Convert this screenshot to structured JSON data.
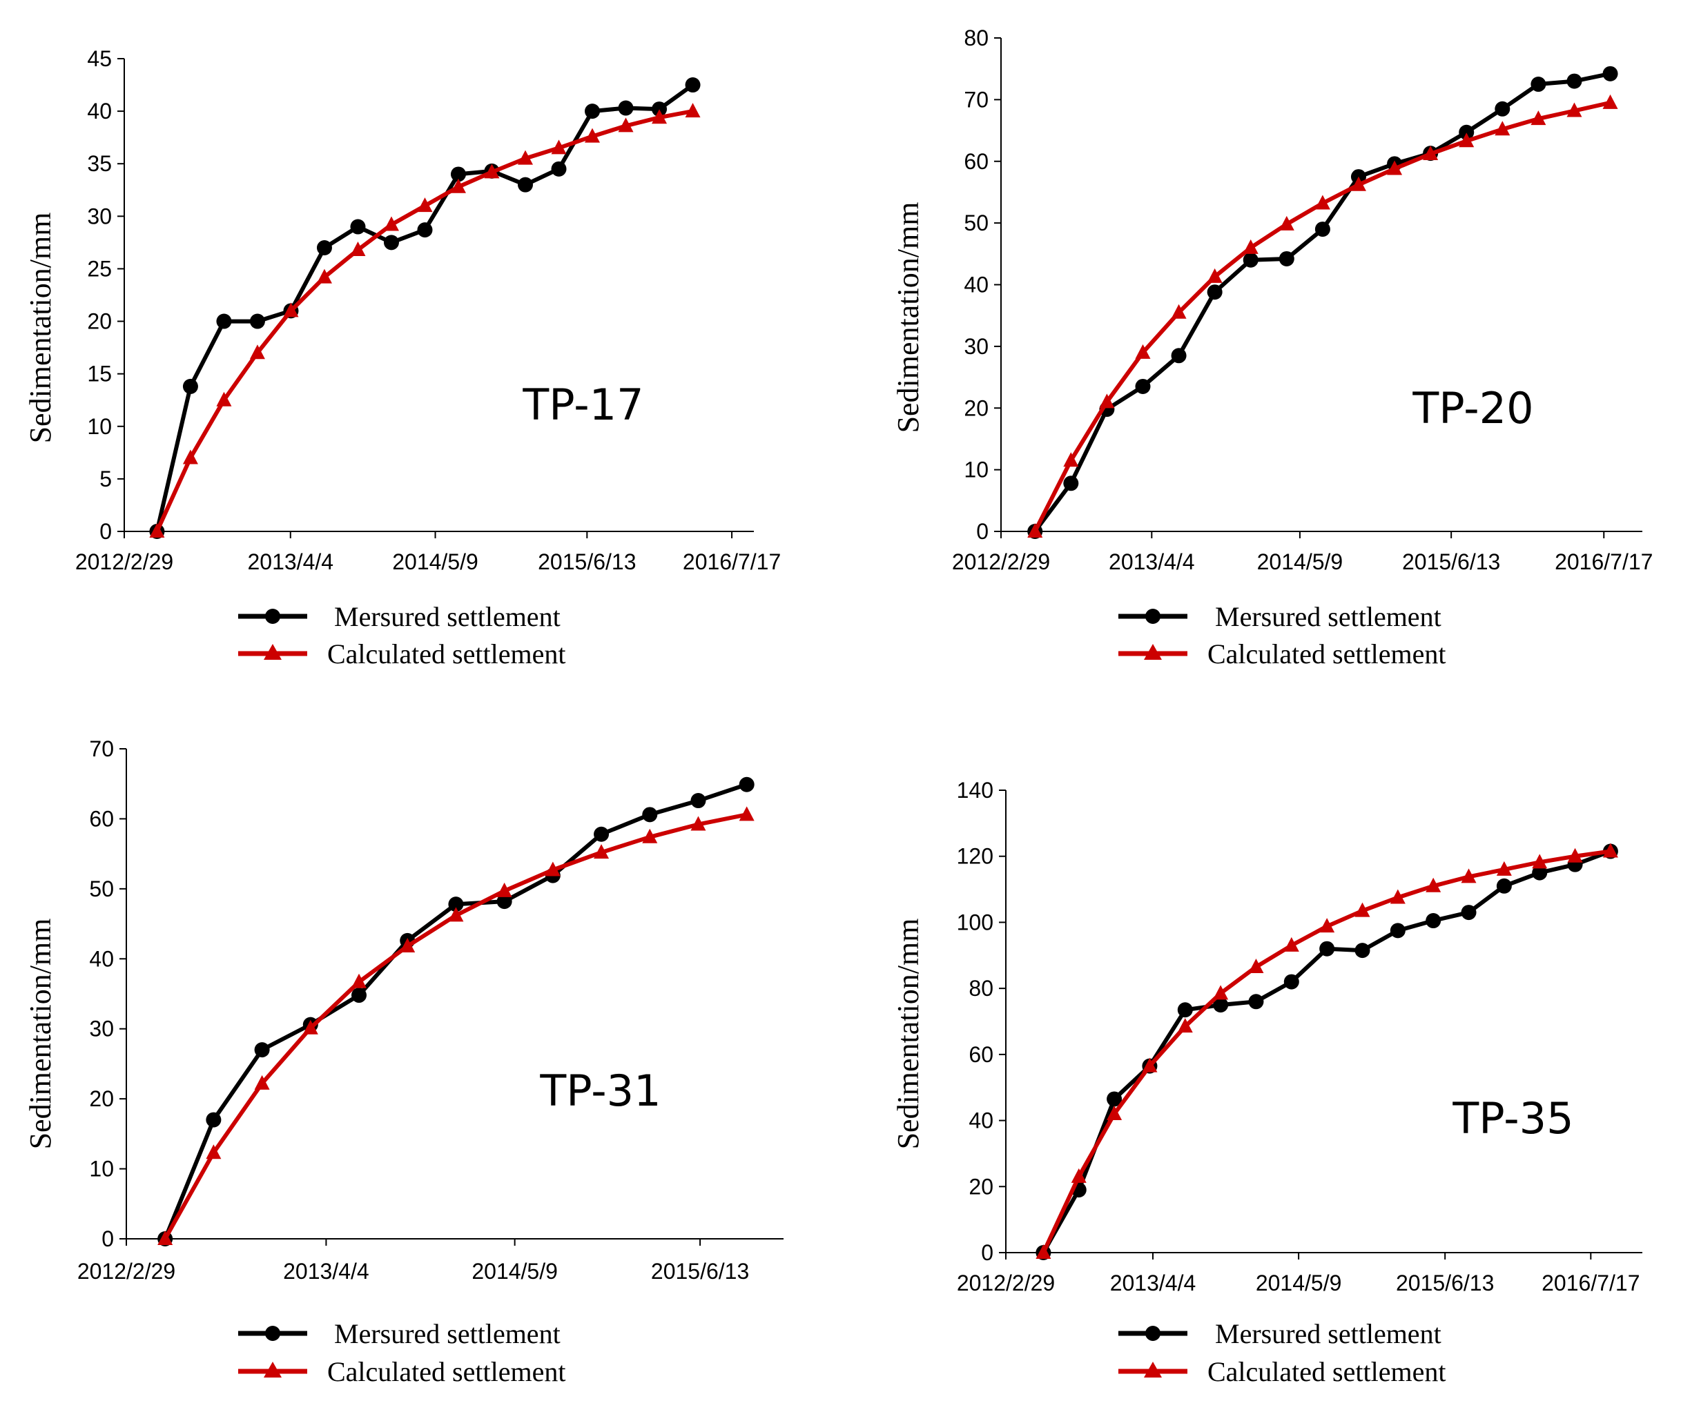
{
  "colors": {
    "measured": "#000000",
    "calculated": "#cc0000",
    "axis": "#000000"
  },
  "chart_data": [
    {
      "type": "line",
      "title": "TP-17",
      "ylabel": "Sedimentation/mm",
      "xlabel": "",
      "ylim": [
        0,
        45
      ],
      "yticks": [
        "0",
        "5",
        "10",
        "15",
        "20",
        "25",
        "30",
        "35",
        "40",
        "45"
      ],
      "xticks": [
        "2012/2/29",
        "2013/4/4",
        "2014/5/9",
        "2015/6/13",
        "2016/7/17"
      ],
      "grid": false,
      "legend": "bottom",
      "series": [
        {
          "name": "Mersured settlement",
          "marker": "circle",
          "values": [
            0,
            13.8,
            20,
            20,
            21,
            27,
            29,
            27.5,
            28.7,
            34,
            34.3,
            33,
            34.5,
            40,
            40.3,
            40.2,
            42.5
          ]
        },
        {
          "name": "Calculated settlement",
          "marker": "triangle",
          "values": [
            0,
            7,
            12.5,
            17,
            21,
            24.2,
            26.8,
            29.2,
            31,
            32.8,
            34.2,
            35.5,
            36.5,
            37.6,
            38.6,
            39.4,
            40
          ]
        }
      ]
    },
    {
      "type": "line",
      "title": "TP-20",
      "ylabel": "Sedimentation/mm",
      "xlabel": "",
      "ylim": [
        0,
        80
      ],
      "yticks": [
        "0",
        "10",
        "20",
        "30",
        "40",
        "50",
        "60",
        "70",
        "80"
      ],
      "xticks": [
        "2012/2/29",
        "2013/4/4",
        "2014/5/9",
        "2015/6/13",
        "2016/7/17"
      ],
      "grid": false,
      "legend": "bottom",
      "series": [
        {
          "name": "Mersured settlement",
          "marker": "circle",
          "values": [
            0,
            7.8,
            19.8,
            23.5,
            28.5,
            38.8,
            44,
            44.2,
            49,
            57.5,
            59.6,
            61.3,
            64.7,
            68.5,
            72.5,
            73,
            74.2
          ]
        },
        {
          "name": "Calculated settlement",
          "marker": "triangle",
          "values": [
            0,
            11.5,
            21,
            29,
            35.5,
            41.3,
            46,
            49.8,
            53.2,
            56.2,
            58.8,
            61.2,
            63.3,
            65.2,
            66.9,
            68.2,
            69.5
          ]
        }
      ]
    },
    {
      "type": "line",
      "title": "TP-31",
      "ylabel": "Sedimentation/mm",
      "xlabel": "",
      "ylim": [
        0,
        70
      ],
      "yticks": [
        "0",
        "10",
        "20",
        "30",
        "40",
        "50",
        "60",
        "70"
      ],
      "xticks": [
        "2012/2/29",
        "2013/4/4",
        "2014/5/9",
        "2015/6/13"
      ],
      "grid": false,
      "legend": "bottom",
      "series": [
        {
          "name": "Mersured settlement",
          "marker": "circle",
          "values": [
            0,
            17,
            27,
            30.6,
            34.8,
            42.6,
            47.8,
            48.2,
            51.9,
            57.8,
            60.6,
            62.6,
            64.9
          ]
        },
        {
          "name": "Calculated settlement",
          "marker": "triangle",
          "values": [
            0,
            12.3,
            22.2,
            30.1,
            36.7,
            41.8,
            46.2,
            49.7,
            52.7,
            55.2,
            57.4,
            59.2,
            60.6
          ]
        }
      ]
    },
    {
      "type": "line",
      "title": "TP-35",
      "ylabel": "Sedimentation/mm",
      "xlabel": "",
      "ylim": [
        0,
        140
      ],
      "yticks": [
        "0",
        "20",
        "40",
        "60",
        "80",
        "100",
        "120",
        "140"
      ],
      "xticks": [
        "2012/2/29",
        "2013/4/4",
        "2014/5/9",
        "2015/6/13",
        "2016/7/17"
      ],
      "grid": false,
      "legend": "bottom",
      "series": [
        {
          "name": "Mersured settlement",
          "marker": "circle",
          "values": [
            0,
            19,
            46.5,
            56.5,
            73.5,
            75,
            76,
            82,
            92,
            91.5,
            97.5,
            100.5,
            103,
            111,
            115,
            117.5,
            121.5
          ]
        },
        {
          "name": "Calculated settlement",
          "marker": "triangle",
          "values": [
            0,
            23,
            42,
            56.5,
            68.5,
            78.5,
            86.5,
            93,
            98.8,
            103.5,
            107.5,
            111,
            113.8,
            116,
            118.2,
            120,
            121.5
          ]
        }
      ]
    }
  ]
}
